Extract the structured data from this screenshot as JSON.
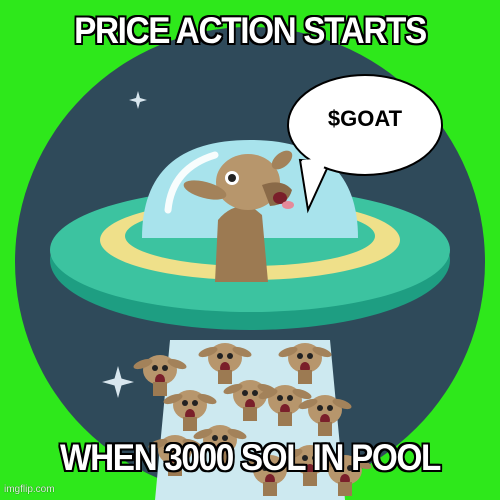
{
  "meme": {
    "top_text": "PRICE ACTION STARTS",
    "bottom_text": "WHEN 3000 SOL IN POOL",
    "bubble_text": "$GOAT",
    "watermark": "imgflip.com"
  },
  "colors": {
    "background": "#2ee81b",
    "circle": "#2f4a5a",
    "saucer_dark": "#1e9e82",
    "saucer_light": "#3cc3a0",
    "saucer_ring": "#efe08a",
    "dome": "#a8e3ec",
    "beam": "#cde9f0",
    "goat_fur": "#b7966c"
  },
  "icons": [
    "sparkle-icon",
    "speech-bubble-icon",
    "goat-head-icon"
  ]
}
